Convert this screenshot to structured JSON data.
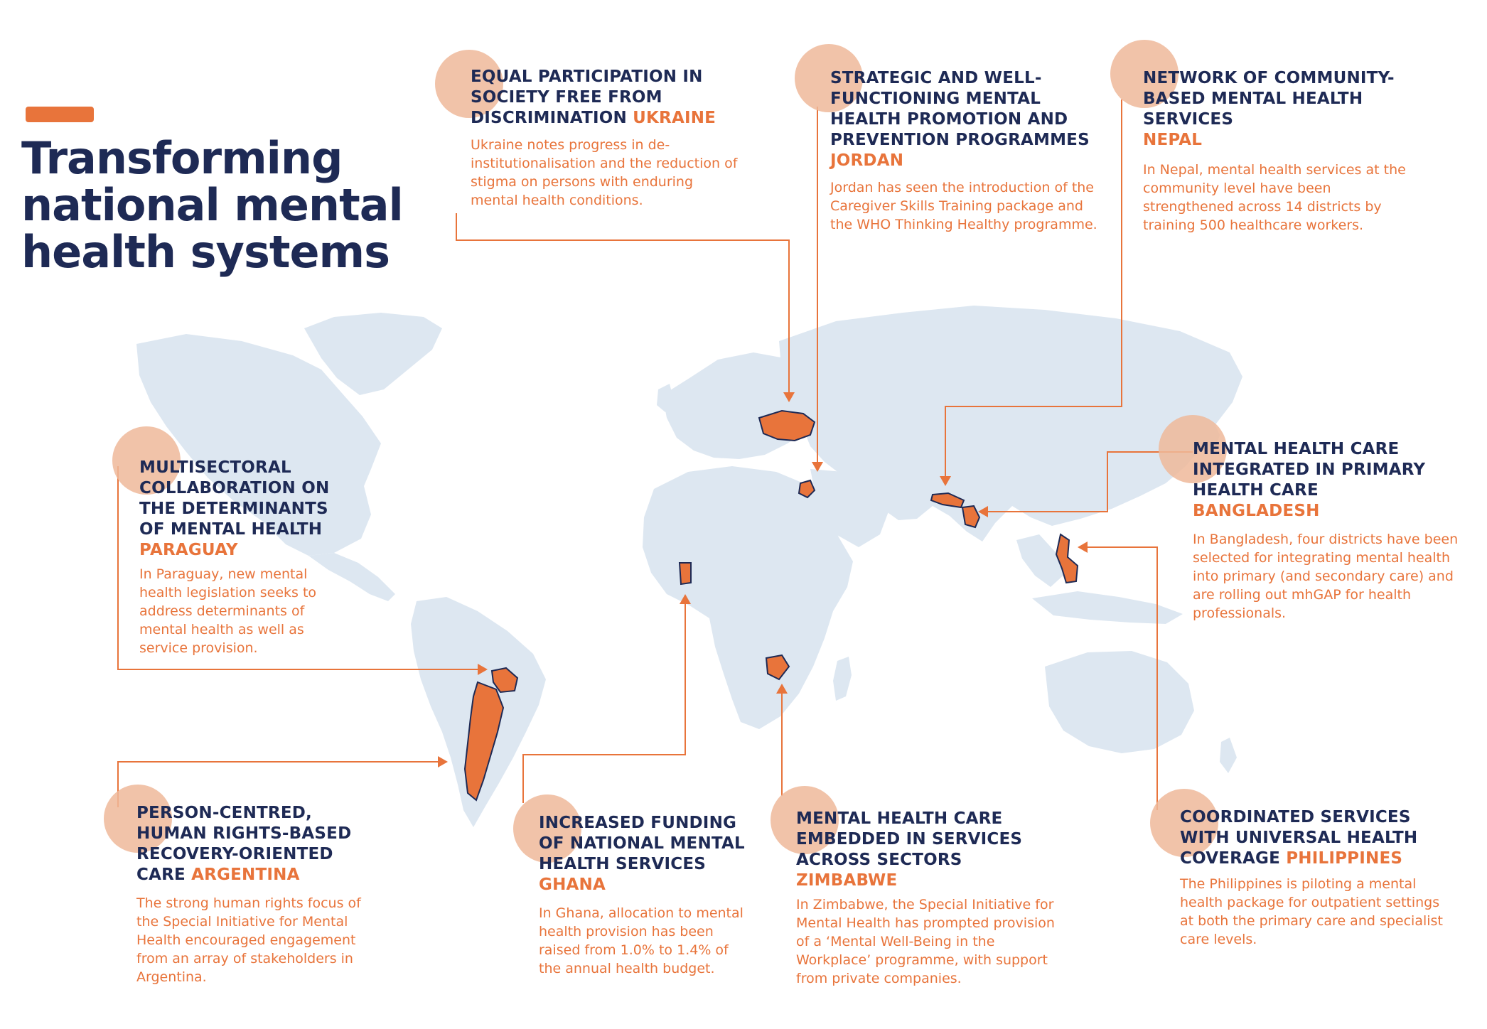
{
  "title": {
    "line1": "Transforming",
    "line2": "national mental",
    "line3": "health systems"
  },
  "colors": {
    "navy": "#1e2a55",
    "orange": "#e8743b",
    "circle": "#efb89a",
    "land": "#dde7f1"
  },
  "callouts": [
    {
      "id": "ukraine",
      "heading": "EQUAL PARTICIPATION IN SOCIETY FREE FROM DISCRIMINATION",
      "country": "UKRAINE",
      "body": "Ukraine notes progress in de-institutionalisation and the reduction of stigma on persons with enduring mental health conditions."
    },
    {
      "id": "jordan",
      "heading": "STRATEGIC AND WELL-FUNCTIONING MENTAL HEALTH PROMOTION AND PREVENTION PROGRAMMES",
      "country": "JORDAN",
      "body": "Jordan has seen the introduction of the Caregiver Skills Training package and the WHO Thinking Healthy programme."
    },
    {
      "id": "nepal",
      "heading": "NETWORK OF COMMUNITY-BASED MENTAL HEALTH SERVICES",
      "country": "NEPAL",
      "body": "In Nepal, mental health services at the community level have been strengthened across 14 districts by training 500 healthcare workers."
    },
    {
      "id": "paraguay",
      "heading": "MULTISECTORAL COLLABORATION ON THE DETERMINANTS OF MENTAL HEALTH",
      "country": "PARAGUAY",
      "body": "In Paraguay, new mental health legislation seeks to address determinants of mental health as well as service provision."
    },
    {
      "id": "bangladesh",
      "heading": "MENTAL HEALTH CARE INTEGRATED IN PRIMARY HEALTH CARE",
      "country": "BANGLADESH",
      "body": "In Bangladesh, four districts have been selected for integrating mental health into primary (and secondary care) and are rolling out mhGAP for health professionals."
    },
    {
      "id": "argentina",
      "heading": "PERSON-CENTRED, HUMAN RIGHTS-BASED RECOVERY-ORIENTED CARE",
      "country": "ARGENTINA",
      "body": "The strong human rights focus of the Special Initiative for Mental Health encouraged engagement from an array of stakeholders in Argentina."
    },
    {
      "id": "ghana",
      "heading": "INCREASED FUNDING OF NATIONAL MENTAL HEALTH SERVICES",
      "country": "GHANA",
      "body": "In Ghana, allocation to mental health provision has been raised from 1.0% to 1.4% of the annual health budget."
    },
    {
      "id": "zimbabwe",
      "heading": "MENTAL HEALTH CARE EMBEDDED IN SERVICES ACROSS SECTORS",
      "country": "ZIMBABWE",
      "body": "In Zimbabwe, the Special Initiative for Mental Health has prompted provision of a ‘Mental Well-Being in the Workplace’ programme, with support from private companies."
    },
    {
      "id": "philippines",
      "heading": "COORDINATED SERVICES WITH UNIVERSAL HEALTH COVERAGE",
      "country": "PHILIPPINES",
      "body": "The Philippines is piloting a mental health package for outpatient settings at both the primary care and specialist care levels."
    }
  ]
}
